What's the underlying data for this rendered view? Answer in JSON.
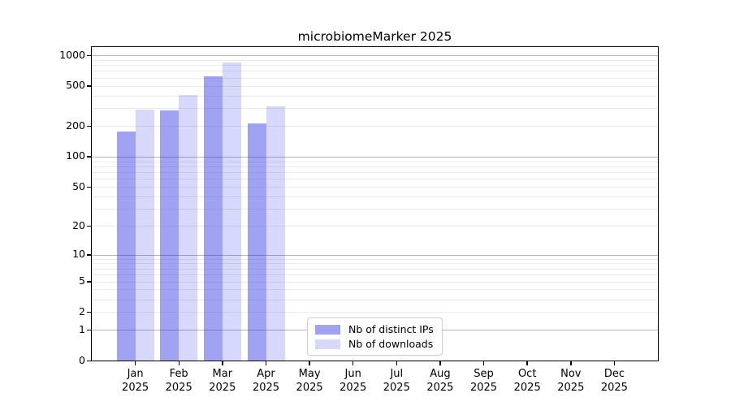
{
  "title": "microbiomeMarker 2025",
  "chart_data": {
    "type": "bar",
    "title": "microbiomeMarker 2025",
    "xlabel": "",
    "ylabel": "",
    "scale": "log1p",
    "grid": true,
    "legend_position": "lower center",
    "categories": [
      "Jan 2025",
      "Feb 2025",
      "Mar 2025",
      "Apr 2025",
      "May 2025",
      "Jun 2025",
      "Jul 2025",
      "Aug 2025",
      "Sep 2025",
      "Oct 2025",
      "Nov 2025",
      "Dec 2025"
    ],
    "y_ticks": [
      0,
      1,
      2,
      5,
      10,
      20,
      50,
      100,
      200,
      500,
      1000
    ],
    "ylim": [
      0,
      1200
    ],
    "series": [
      {
        "name": "Nb of distinct IPs",
        "color": "rgba(40,40,228,0.43)",
        "color_hex": "#a5a5f0",
        "values": [
          178,
          285,
          620,
          214,
          null,
          null,
          null,
          null,
          null,
          null,
          null,
          null
        ]
      },
      {
        "name": "Nb of downloads",
        "color": "rgba(40,40,228,0.18)",
        "color_hex": "#d8d8f8",
        "values": [
          293,
          410,
          845,
          315,
          null,
          null,
          null,
          null,
          null,
          null,
          null,
          null
        ]
      }
    ]
  }
}
